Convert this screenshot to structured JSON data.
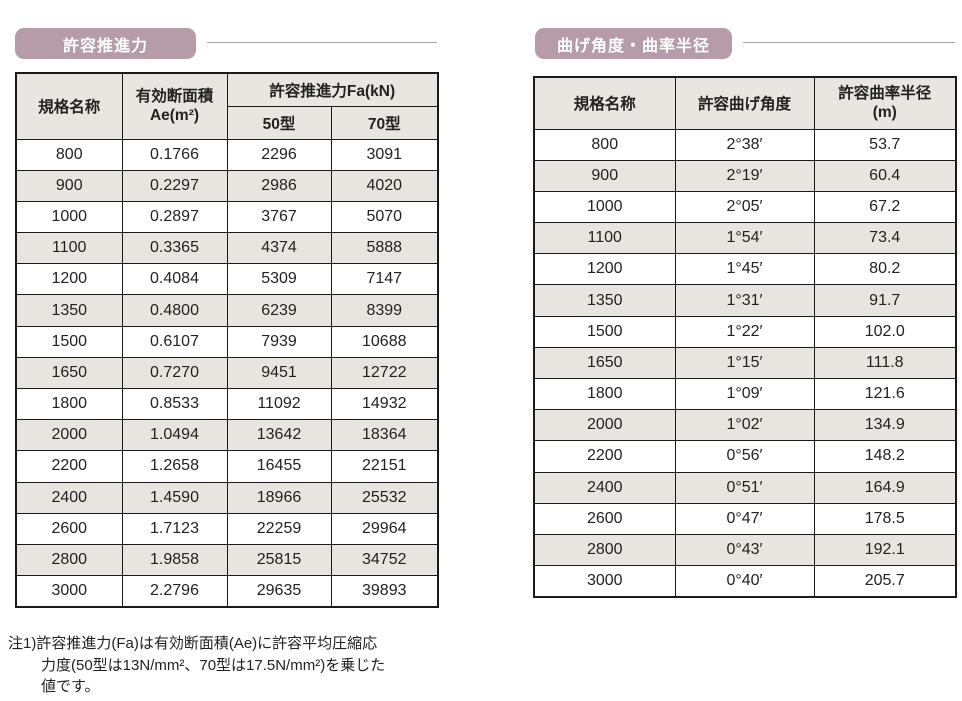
{
  "colors": {
    "badge_bg": "#b59ca8",
    "badge_text": "#ffffff",
    "header_bg": "#e9e6e1",
    "alt_row_bg": "#e8e5e0",
    "border": "#1a1a1a",
    "rule_line": "#a6a6a6",
    "text": "#222222"
  },
  "left_section": {
    "badge_label": "許容推進力",
    "table": {
      "headers": {
        "name": "規格名称",
        "area_line1": "有効断面積",
        "area_line2": "Ae(m²)",
        "force_group": "許容推進力Fa(kN)",
        "type50": "50型",
        "type70": "70型"
      },
      "rows": [
        {
          "name": "800",
          "area": "0.1766",
          "f50": "2296",
          "f70": "3091"
        },
        {
          "name": "900",
          "area": "0.2297",
          "f50": "2986",
          "f70": "4020"
        },
        {
          "name": "1000",
          "area": "0.2897",
          "f50": "3767",
          "f70": "5070"
        },
        {
          "name": "1100",
          "area": "0.3365",
          "f50": "4374",
          "f70": "5888"
        },
        {
          "name": "1200",
          "area": "0.4084",
          "f50": "5309",
          "f70": "7147"
        },
        {
          "name": "1350",
          "area": "0.4800",
          "f50": "6239",
          "f70": "8399"
        },
        {
          "name": "1500",
          "area": "0.6107",
          "f50": "7939",
          "f70": "10688"
        },
        {
          "name": "1650",
          "area": "0.7270",
          "f50": "9451",
          "f70": "12722"
        },
        {
          "name": "1800",
          "area": "0.8533",
          "f50": "11092",
          "f70": "14932"
        },
        {
          "name": "2000",
          "area": "1.0494",
          "f50": "13642",
          "f70": "18364"
        },
        {
          "name": "2200",
          "area": "1.2658",
          "f50": "16455",
          "f70": "22151"
        },
        {
          "name": "2400",
          "area": "1.4590",
          "f50": "18966",
          "f70": "25532"
        },
        {
          "name": "2600",
          "area": "1.7123",
          "f50": "22259",
          "f70": "29964"
        },
        {
          "name": "2800",
          "area": "1.9858",
          "f50": "25815",
          "f70": "34752"
        },
        {
          "name": "3000",
          "area": "2.2796",
          "f50": "29635",
          "f70": "39893"
        }
      ]
    },
    "note": {
      "line1": "注1)許容推進力(Fa)は有効断面積(Ae)に許容平均圧縮応",
      "line2": "力度(50型は13N/mm²、70型は17.5N/mm²)を乗じた",
      "line3": "値です。"
    }
  },
  "right_section": {
    "badge_label": "曲げ角度・曲率半径",
    "table": {
      "headers": {
        "name": "規格名称",
        "angle": "許容曲げ角度",
        "radius_line1": "許容曲率半径",
        "radius_line2": "(m)"
      },
      "rows": [
        {
          "name": "800",
          "angle": "2°38′",
          "radius": "53.7"
        },
        {
          "name": "900",
          "angle": "2°19′",
          "radius": "60.4"
        },
        {
          "name": "1000",
          "angle": "2°05′",
          "radius": "67.2"
        },
        {
          "name": "1100",
          "angle": "1°54′",
          "radius": "73.4"
        },
        {
          "name": "1200",
          "angle": "1°45′",
          "radius": "80.2"
        },
        {
          "name": "1350",
          "angle": "1°31′",
          "radius": "91.7"
        },
        {
          "name": "1500",
          "angle": "1°22′",
          "radius": "102.0"
        },
        {
          "name": "1650",
          "angle": "1°15′",
          "radius": "111.8"
        },
        {
          "name": "1800",
          "angle": "1°09′",
          "radius": "121.6"
        },
        {
          "name": "2000",
          "angle": "1°02′",
          "radius": "134.9"
        },
        {
          "name": "2200",
          "angle": "0°56′",
          "radius": "148.2"
        },
        {
          "name": "2400",
          "angle": "0°51′",
          "radius": "164.9"
        },
        {
          "name": "2600",
          "angle": "0°47′",
          "radius": "178.5"
        },
        {
          "name": "2800",
          "angle": "0°43′",
          "radius": "192.1"
        },
        {
          "name": "3000",
          "angle": "0°40′",
          "radius": "205.7"
        }
      ]
    }
  }
}
